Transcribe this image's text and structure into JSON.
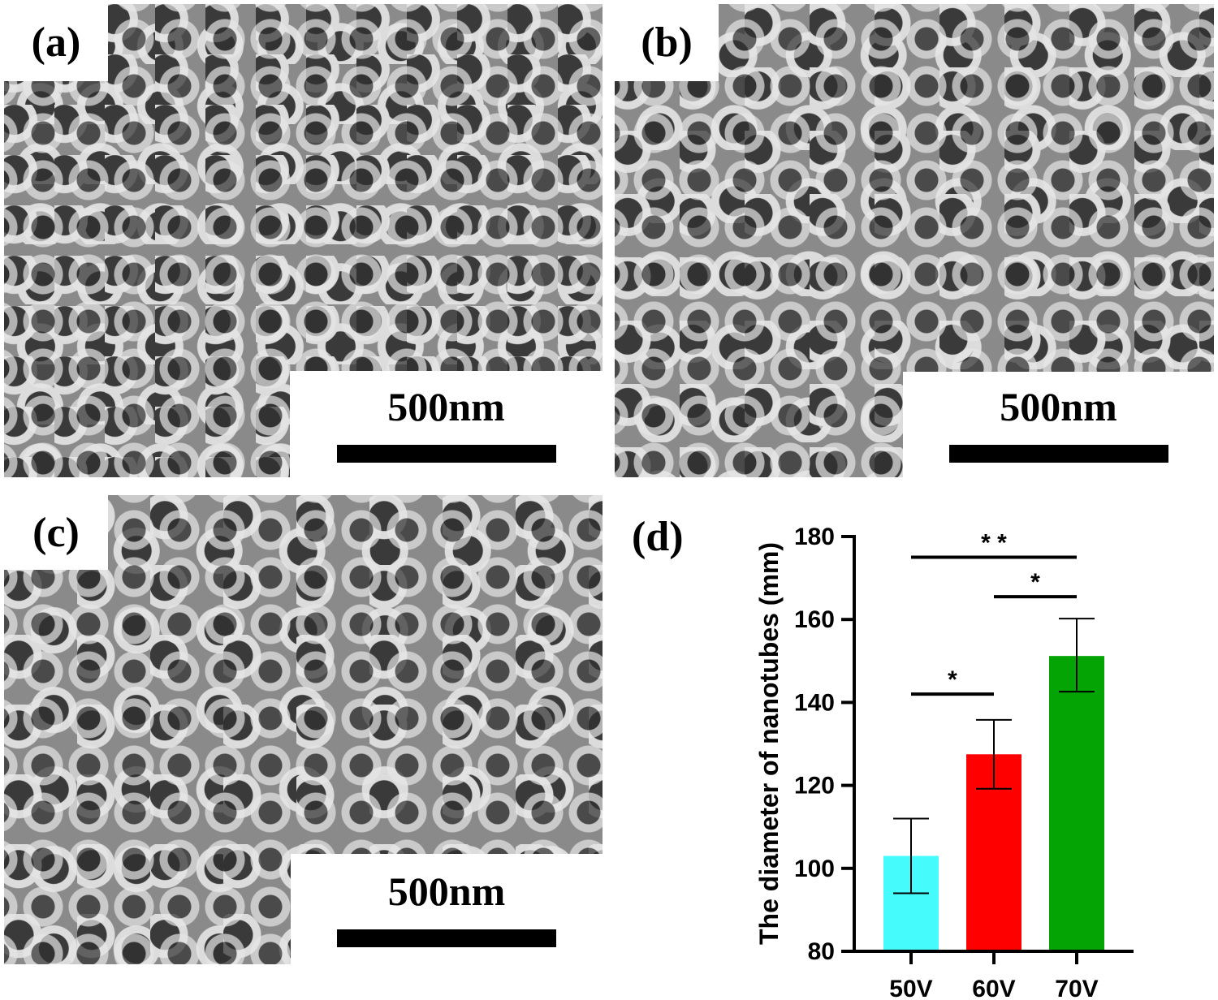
{
  "panels": [
    {
      "id": "a",
      "label": "(a)",
      "scale_bar": "500nm"
    },
    {
      "id": "b",
      "label": "(b)",
      "scale_bar": "500nm"
    },
    {
      "id": "c",
      "label": "(c)",
      "scale_bar": "500nm"
    },
    {
      "id": "d",
      "label": "(d)"
    }
  ],
  "chart_data": {
    "type": "bar",
    "title": "",
    "xlabel": "",
    "ylabel": "The diameter of nanotubes (mm)",
    "categories": [
      "50V",
      "60V",
      "70V"
    ],
    "values": [
      103,
      127.5,
      151.2
    ],
    "error": [
      [
        94,
        112
      ],
      [
        119.2,
        135.8
      ],
      [
        142.6,
        160.2
      ]
    ],
    "colors": [
      "#45fbfb",
      "#fe0000",
      "#04a404"
    ],
    "ylim": [
      80,
      180
    ],
    "yticks": [
      80,
      100,
      120,
      140,
      160,
      180
    ],
    "grid": false,
    "significance": [
      {
        "from": "50V",
        "to": "70V",
        "y": 175,
        "label": "**"
      },
      {
        "from": "60V",
        "to": "70V",
        "y": 165.5,
        "label": "*"
      },
      {
        "from": "50V",
        "to": "60V",
        "y": 142,
        "label": "*"
      }
    ]
  }
}
